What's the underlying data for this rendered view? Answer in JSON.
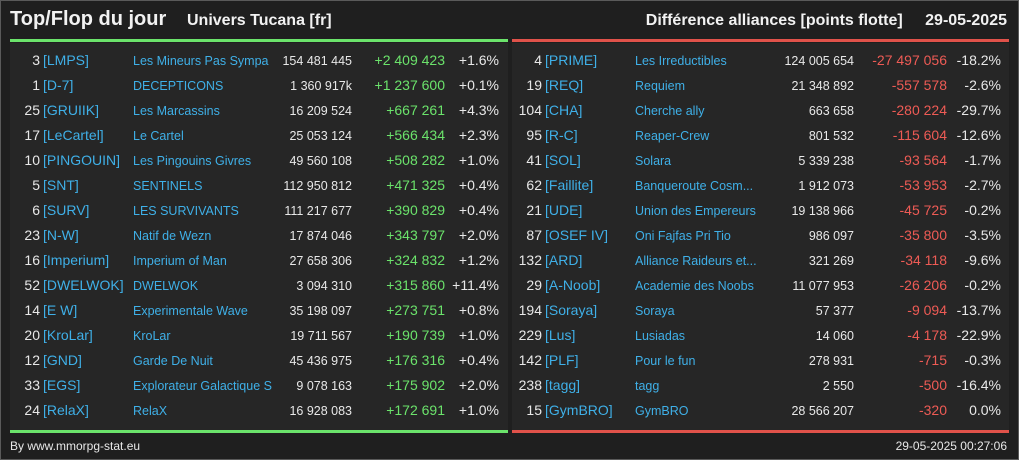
{
  "header": {
    "title": "Top/Flop du jour",
    "universe": "Univers Tucana [fr]",
    "subtitle": "Différence alliances [points flotte]",
    "date": "29-05-2025"
  },
  "colors": {
    "positive": "#6be36b",
    "negative": "#ee5b55",
    "link": "#3fb0e8"
  },
  "top": [
    {
      "rank": "3",
      "tag": "[LMPS]",
      "name": "Les Mineurs Pas Sympa",
      "points": "154 481 445",
      "diff": "+2 409 423",
      "pct": "+1.6%"
    },
    {
      "rank": "1",
      "tag": "[D-7]",
      "name": "DECEPTICONS",
      "points": "1 360 917k",
      "diff": "+1 237 600",
      "pct": "+0.1%"
    },
    {
      "rank": "25",
      "tag": "[GRUIIK]",
      "name": "Les Marcassins",
      "points": "16 209 524",
      "diff": "+667 261",
      "pct": "+4.3%"
    },
    {
      "rank": "17",
      "tag": "[LeCartel]",
      "name": "Le Cartel",
      "points": "25 053 124",
      "diff": "+566 434",
      "pct": "+2.3%"
    },
    {
      "rank": "10",
      "tag": "[PINGOUIN]",
      "name": "Les Pingouins Givres",
      "points": "49 560 108",
      "diff": "+508 282",
      "pct": "+1.0%"
    },
    {
      "rank": "5",
      "tag": "[SNT]",
      "name": "SENTINELS",
      "points": "112 950 812",
      "diff": "+471 325",
      "pct": "+0.4%"
    },
    {
      "rank": "6",
      "tag": "[SURV]",
      "name": "LES SURVIVANTS",
      "points": "111 217 677",
      "diff": "+390 829",
      "pct": "+0.4%"
    },
    {
      "rank": "23",
      "tag": "[N-W]",
      "name": "Natif de Wezn",
      "points": "17 874 046",
      "diff": "+343 797",
      "pct": "+2.0%"
    },
    {
      "rank": "16",
      "tag": "[Imperium]",
      "name": "Imperium of Man",
      "points": "27 658 306",
      "diff": "+324 832",
      "pct": "+1.2%"
    },
    {
      "rank": "52",
      "tag": "[DWELWOK]",
      "name": "DWELWOK",
      "points": "3 094 310",
      "diff": "+315 860",
      "pct": "+11.4%"
    },
    {
      "rank": "14",
      "tag": "[E W]",
      "name": "Experimentale Wave",
      "points": "35 198 097",
      "diff": "+273 751",
      "pct": "+0.8%"
    },
    {
      "rank": "20",
      "tag": "[KroLar]",
      "name": "KroLar",
      "points": "19 711 567",
      "diff": "+190 739",
      "pct": "+1.0%"
    },
    {
      "rank": "12",
      "tag": "[GND]",
      "name": "Garde De Nuit",
      "points": "45 436 975",
      "diff": "+176 316",
      "pct": "+0.4%"
    },
    {
      "rank": "33",
      "tag": "[EGS]",
      "name": "Explorateur Galactique S",
      "points": "9 078 163",
      "diff": "+175 902",
      "pct": "+2.0%"
    },
    {
      "rank": "24",
      "tag": "[RelaX]",
      "name": "RelaX",
      "points": "16 928 083",
      "diff": "+172 691",
      "pct": "+1.0%"
    }
  ],
  "flop": [
    {
      "rank": "4",
      "tag": "[PRIME]",
      "name": "Les Irreductibles",
      "points": "124 005 654",
      "diff": "-27 497 056",
      "pct": "-18.2%"
    },
    {
      "rank": "19",
      "tag": "[REQ]",
      "name": "Requiem",
      "points": "21 348 892",
      "diff": "-557 578",
      "pct": "-2.6%"
    },
    {
      "rank": "104",
      "tag": "[CHA]",
      "name": "Cherche ally",
      "points": "663 658",
      "diff": "-280 224",
      "pct": "-29.7%"
    },
    {
      "rank": "95",
      "tag": "[R-C]",
      "name": "Reaper-Crew",
      "points": "801 532",
      "diff": "-115 604",
      "pct": "-12.6%"
    },
    {
      "rank": "41",
      "tag": "[SOL]",
      "name": "Solara",
      "points": "5 339 238",
      "diff": "-93 564",
      "pct": "-1.7%"
    },
    {
      "rank": "62",
      "tag": "[Faillite]",
      "name": "Banqueroute Cosm...",
      "points": "1 912 073",
      "diff": "-53 953",
      "pct": "-2.7%"
    },
    {
      "rank": "21",
      "tag": "[UDE]",
      "name": "Union des Empereurs",
      "points": "19 138 966",
      "diff": "-45 725",
      "pct": "-0.2%"
    },
    {
      "rank": "87",
      "tag": "[OSEF IV]",
      "name": "Oni Fajfas Pri Tio",
      "points": "986 097",
      "diff": "-35 800",
      "pct": "-3.5%"
    },
    {
      "rank": "132",
      "tag": "[ARD]",
      "name": "Alliance Raideurs et...",
      "points": "321 269",
      "diff": "-34 118",
      "pct": "-9.6%"
    },
    {
      "rank": "29",
      "tag": "[A-Noob]",
      "name": "Academie des Noobs",
      "points": "11 077 953",
      "diff": "-26 206",
      "pct": "-0.2%"
    },
    {
      "rank": "194",
      "tag": "[Soraya]",
      "name": "Soraya",
      "points": "57 377",
      "diff": "-9 094",
      "pct": "-13.7%"
    },
    {
      "rank": "229",
      "tag": "[Lus]",
      "name": "Lusiadas",
      "points": "14 060",
      "diff": "-4 178",
      "pct": "-22.9%"
    },
    {
      "rank": "142",
      "tag": "[PLF]",
      "name": "Pour le fun",
      "points": "278 931",
      "diff": "-715",
      "pct": "-0.3%"
    },
    {
      "rank": "238",
      "tag": "[tagg]",
      "name": "tagg",
      "points": "2 550",
      "diff": "-500",
      "pct": "-16.4%"
    },
    {
      "rank": "15",
      "tag": "[GymBRO]",
      "name": "GymBRO",
      "points": "28 566 207",
      "diff": "-320",
      "pct": "0.0%"
    }
  ],
  "footer": {
    "credit": "By www.mmorpg-stat.eu",
    "timestamp": "29-05-2025 00:27:06"
  }
}
